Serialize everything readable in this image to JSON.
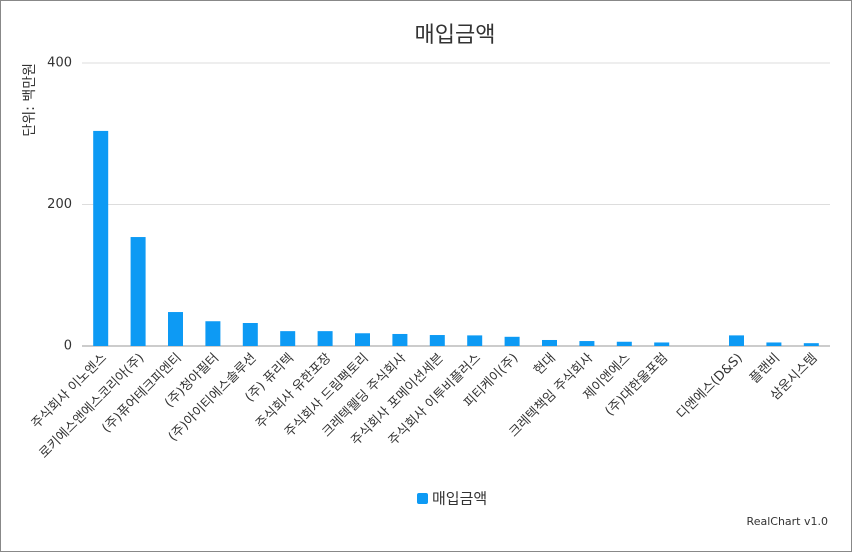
{
  "chart_data": {
    "type": "bar",
    "title": "매입금액",
    "y_axis_label": "단위: 백만원",
    "categories": [
      "주식회사 이노엔스",
      "로키에스앤에스코리아(주)",
      "(주)퓨어테크피엔티",
      "(주)청아필터",
      "(주)아이티에스솔루션",
      "(주) 퓨리텍",
      "주식회사 유한포장",
      "주식회사 드림팩토리",
      "크레텍웰딩 주식회사",
      "주식회사 포메이션세븐",
      "주식회사 이투비플러스",
      "피티케이(주)",
      "현대",
      "크레텍책임 주식회사",
      "제이앤에스",
      "(주)대한울포럼",
      null,
      "디앤에스(D&S)",
      "플랜비",
      "삼운시스템"
    ],
    "series": [
      {
        "name": "매입금액",
        "color": "#0d9af4",
        "values": [
          304,
          154,
          48,
          35,
          32.5,
          21,
          21,
          18,
          17,
          15.5,
          15,
          13,
          8.5,
          7,
          6,
          5,
          0,
          15,
          5,
          4
        ]
      }
    ],
    "ylim": [
      0,
      400
    ],
    "yticks": [
      0,
      200,
      400
    ],
    "grid": true,
    "legend": "bottom",
    "credit": "RealChart v1.0"
  }
}
